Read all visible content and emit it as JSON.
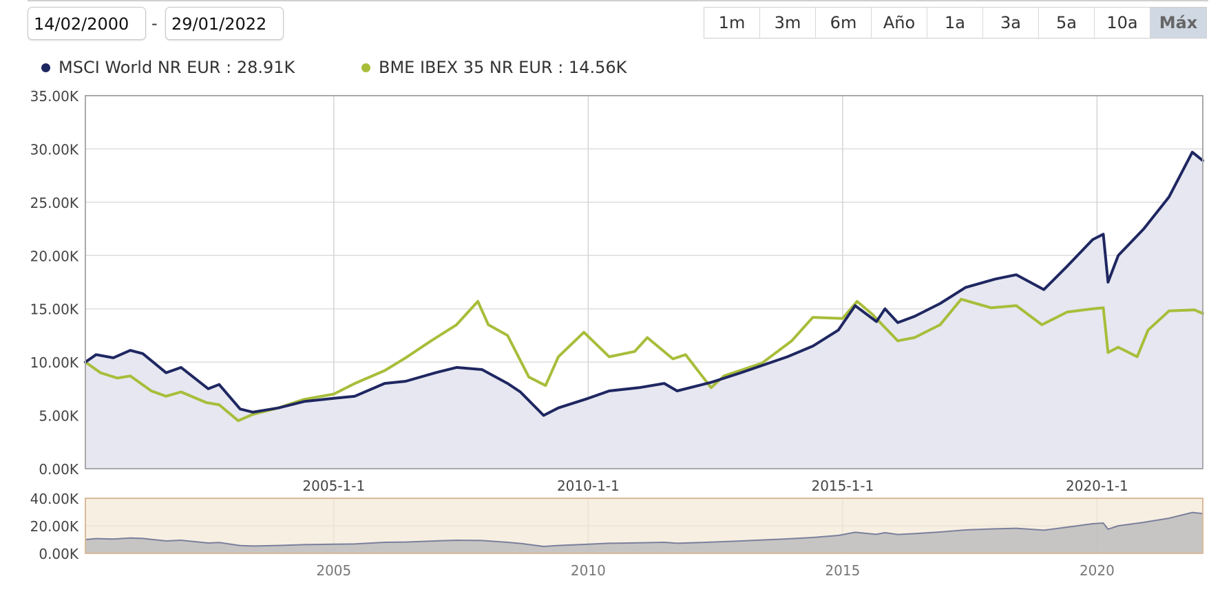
{
  "controls": {
    "date_from": "14/02/2000",
    "date_separator": "-",
    "date_to": "29/01/2022",
    "ranges": [
      {
        "label": "1m",
        "active": false
      },
      {
        "label": "3m",
        "active": false
      },
      {
        "label": "6m",
        "active": false
      },
      {
        "label": "Año",
        "active": false
      },
      {
        "label": "1a",
        "active": false
      },
      {
        "label": "3a",
        "active": false
      },
      {
        "label": "5a",
        "active": false
      },
      {
        "label": "10a",
        "active": false
      },
      {
        "label": "Máx",
        "active": true
      }
    ]
  },
  "legend": [
    {
      "name": "MSCI World NR EUR",
      "value": "28.91K",
      "separator": " : "
    },
    {
      "name": "BME IBEX 35 NR EUR",
      "value": "14.56K",
      "separator": " : "
    }
  ],
  "chart_data": {
    "type": "line",
    "x_unit": "date",
    "xlim": [
      "2000-02-14",
      "2022-01-29"
    ],
    "ylim": [
      0,
      35000
    ],
    "y_ticks": [
      "0.00K",
      "5.00K",
      "10.00K",
      "15.00K",
      "20.00K",
      "25.00K",
      "30.00K",
      "35.00K"
    ],
    "x_ticks": [
      "2005-1-1",
      "2010-1-1",
      "2015-1-1",
      "2020-1-1"
    ],
    "grid": true,
    "legend_position": "top-left",
    "series": [
      {
        "name": "MSCI World NR EUR",
        "color": "#1e2761",
        "fill": "#e6e7f0",
        "points": [
          [
            "2000-02-14",
            10000
          ],
          [
            "2000-05-01",
            10700
          ],
          [
            "2000-09-01",
            10400
          ],
          [
            "2001-01-01",
            11100
          ],
          [
            "2001-04-01",
            10800
          ],
          [
            "2001-09-15",
            9000
          ],
          [
            "2002-01-01",
            9500
          ],
          [
            "2002-07-15",
            7500
          ],
          [
            "2002-10-01",
            7900
          ],
          [
            "2003-03-01",
            5600
          ],
          [
            "2003-06-01",
            5300
          ],
          [
            "2003-12-01",
            5700
          ],
          [
            "2004-06-01",
            6300
          ],
          [
            "2005-01-01",
            6600
          ],
          [
            "2005-06-01",
            6800
          ],
          [
            "2006-01-01",
            8000
          ],
          [
            "2006-06-01",
            8200
          ],
          [
            "2007-01-01",
            9000
          ],
          [
            "2007-06-01",
            9500
          ],
          [
            "2007-12-01",
            9300
          ],
          [
            "2008-06-01",
            8000
          ],
          [
            "2008-09-01",
            7200
          ],
          [
            "2009-02-15",
            5000
          ],
          [
            "2009-06-01",
            5700
          ],
          [
            "2010-01-01",
            6600
          ],
          [
            "2010-06-01",
            7300
          ],
          [
            "2011-01-01",
            7600
          ],
          [
            "2011-07-01",
            8000
          ],
          [
            "2011-10-01",
            7300
          ],
          [
            "2012-06-01",
            8100
          ],
          [
            "2013-01-01",
            9000
          ],
          [
            "2013-12-01",
            10500
          ],
          [
            "2014-06-01",
            11500
          ],
          [
            "2014-12-01",
            13000
          ],
          [
            "2015-04-01",
            15300
          ],
          [
            "2015-09-01",
            13800
          ],
          [
            "2015-11-01",
            15000
          ],
          [
            "2016-02-01",
            13700
          ],
          [
            "2016-06-01",
            14300
          ],
          [
            "2016-12-01",
            15500
          ],
          [
            "2017-06-01",
            17000
          ],
          [
            "2018-01-01",
            17800
          ],
          [
            "2018-06-01",
            18200
          ],
          [
            "2018-12-15",
            16800
          ],
          [
            "2019-06-01",
            19000
          ],
          [
            "2019-12-01",
            21500
          ],
          [
            "2020-02-15",
            22000
          ],
          [
            "2020-03-20",
            17500
          ],
          [
            "2020-06-01",
            20000
          ],
          [
            "2020-12-01",
            22500
          ],
          [
            "2021-06-01",
            25500
          ],
          [
            "2021-11-15",
            29700
          ],
          [
            "2022-01-29",
            28910
          ]
        ]
      },
      {
        "name": "BME IBEX 35 NR EUR",
        "color": "#a8bd3a",
        "points": [
          [
            "2000-02-14",
            10000
          ],
          [
            "2000-06-01",
            9000
          ],
          [
            "2000-10-01",
            8500
          ],
          [
            "2001-01-01",
            8700
          ],
          [
            "2001-06-01",
            7300
          ],
          [
            "2001-09-15",
            6800
          ],
          [
            "2002-01-01",
            7200
          ],
          [
            "2002-07-01",
            6200
          ],
          [
            "2002-10-01",
            6000
          ],
          [
            "2003-02-15",
            4500
          ],
          [
            "2003-06-01",
            5100
          ],
          [
            "2003-12-01",
            5700
          ],
          [
            "2004-06-01",
            6500
          ],
          [
            "2005-01-01",
            7000
          ],
          [
            "2005-06-01",
            8000
          ],
          [
            "2006-01-01",
            9200
          ],
          [
            "2006-06-01",
            10400
          ],
          [
            "2006-12-01",
            12000
          ],
          [
            "2007-06-01",
            13500
          ],
          [
            "2007-11-01",
            15700
          ],
          [
            "2008-01-15",
            13500
          ],
          [
            "2008-06-01",
            12500
          ],
          [
            "2008-11-01",
            8600
          ],
          [
            "2009-03-01",
            7800
          ],
          [
            "2009-06-01",
            10500
          ],
          [
            "2009-12-01",
            12800
          ],
          [
            "2010-06-01",
            10500
          ],
          [
            "2010-12-01",
            11000
          ],
          [
            "2011-03-01",
            12300
          ],
          [
            "2011-09-01",
            10300
          ],
          [
            "2011-12-01",
            10700
          ],
          [
            "2012-06-01",
            7600
          ],
          [
            "2012-09-01",
            8700
          ],
          [
            "2013-06-01",
            9900
          ],
          [
            "2014-01-01",
            12000
          ],
          [
            "2014-06-01",
            14200
          ],
          [
            "2015-01-01",
            14100
          ],
          [
            "2015-04-15",
            15700
          ],
          [
            "2015-08-01",
            14500
          ],
          [
            "2016-02-01",
            12000
          ],
          [
            "2016-06-01",
            12300
          ],
          [
            "2016-12-01",
            13500
          ],
          [
            "2017-05-01",
            15900
          ],
          [
            "2017-12-01",
            15100
          ],
          [
            "2018-06-01",
            15300
          ],
          [
            "2018-12-01",
            13500
          ],
          [
            "2019-06-01",
            14700
          ],
          [
            "2019-12-01",
            15000
          ],
          [
            "2020-02-15",
            15100
          ],
          [
            "2020-03-20",
            10900
          ],
          [
            "2020-06-01",
            11400
          ],
          [
            "2020-10-15",
            10500
          ],
          [
            "2021-01-01",
            13000
          ],
          [
            "2021-06-01",
            14800
          ],
          [
            "2021-12-01",
            14900
          ],
          [
            "2022-01-29",
            14560
          ]
        ]
      }
    ],
    "navigator": {
      "ylim": [
        0,
        40000
      ],
      "y_ticks": [
        "0.00K",
        "20.00K",
        "40.00K"
      ],
      "x_ticks": [
        "2005",
        "2010",
        "2015",
        "2020"
      ]
    }
  }
}
